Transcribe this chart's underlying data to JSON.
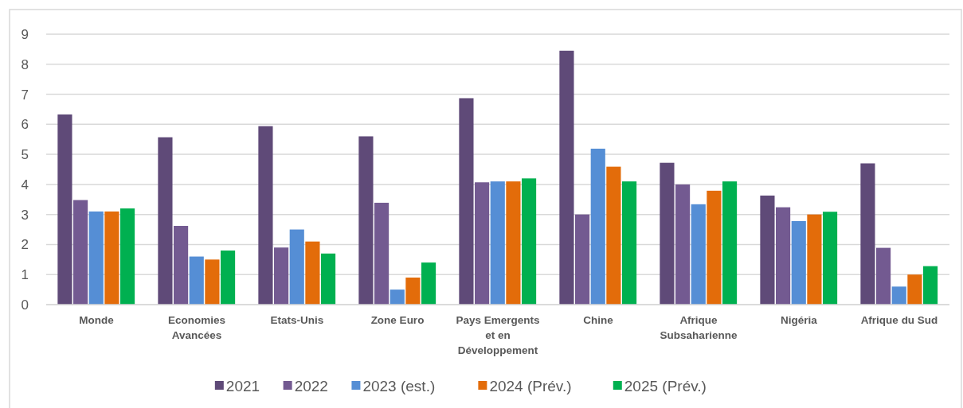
{
  "chart_data": {
    "type": "bar",
    "categories": [
      "Monde",
      "Economies Avancées",
      "Etats-Unis",
      "Zone Euro",
      "Pays Emergents et en Développement",
      "Chine",
      "Afrique Subsaharienne",
      "Nigéria",
      "Afrique du Sud"
    ],
    "series": [
      {
        "name": "2021",
        "color": "#5f4a78",
        "values": [
          6.33,
          5.57,
          5.94,
          5.6,
          6.87,
          8.45,
          4.72,
          3.63,
          4.7
        ]
      },
      {
        "name": "2022",
        "color": "#735a91",
        "values": [
          3.48,
          2.62,
          1.9,
          3.39,
          4.07,
          3.0,
          4.0,
          3.24,
          1.89
        ]
      },
      {
        "name": "2023 (est.)",
        "color": "#558ed5",
        "values": [
          3.1,
          1.6,
          2.5,
          0.5,
          4.1,
          5.19,
          3.34,
          2.78,
          0.6
        ]
      },
      {
        "name": "2024 (Prév.)",
        "color": "#e36c0a",
        "values": [
          3.1,
          1.5,
          2.1,
          0.9,
          4.1,
          4.59,
          3.79,
          3.0,
          1.0
        ]
      },
      {
        "name": "2025 (Prév.)",
        "color": "#00b050",
        "values": [
          3.2,
          1.8,
          1.7,
          1.4,
          4.2,
          4.1,
          4.1,
          3.09,
          1.28
        ]
      }
    ],
    "ylim": [
      0,
      9
    ],
    "yticks": [
      0,
      1,
      2,
      3,
      4,
      5,
      6,
      7,
      8,
      9
    ],
    "grid": "y",
    "legend": "bottom"
  }
}
